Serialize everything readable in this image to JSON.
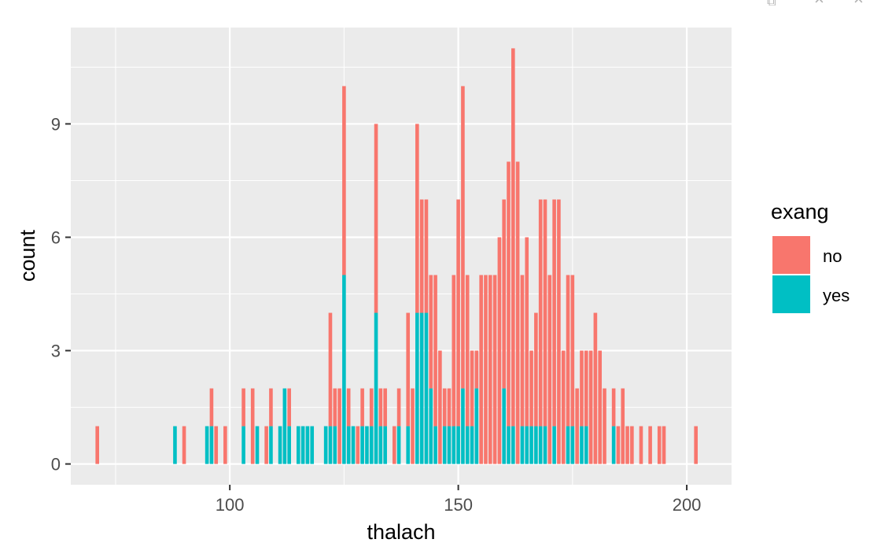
{
  "window_controls": {
    "popout_icon": "popout-icon",
    "close_glyph_1": "×",
    "close_glyph_2": "×"
  },
  "colors": {
    "panel_bg": "#EBEBEB",
    "grid_major": "#FFFFFF",
    "no": "#F8766D",
    "yes": "#00BFC4",
    "tick_text": "#4D4D4D"
  },
  "chart_data": {
    "type": "bar",
    "stacked": true,
    "title": "",
    "xlabel": "thalach",
    "ylabel": "count",
    "xlim": [
      65.2,
      209.8
    ],
    "ylim": [
      -0.55,
      11.55
    ],
    "x_ticks": [
      100,
      150,
      200
    ],
    "x_tick_labels": [
      "100",
      "150",
      "200"
    ],
    "y_ticks": [
      0,
      3,
      6,
      9
    ],
    "y_tick_labels": [
      "0",
      "3",
      "6",
      "9"
    ],
    "grid": true,
    "legend": {
      "title": "exang",
      "position": "right",
      "entries": [
        "no",
        "yes"
      ]
    },
    "x": [
      71,
      88,
      90,
      95,
      96,
      97,
      99,
      103,
      105,
      106,
      108,
      109,
      111,
      112,
      113,
      114,
      115,
      116,
      117,
      118,
      120,
      121,
      122,
      123,
      124,
      125,
      126,
      127,
      128,
      129,
      130,
      131,
      132,
      133,
      134,
      136,
      137,
      138,
      139,
      140,
      141,
      142,
      143,
      144,
      145,
      146,
      147,
      148,
      149,
      150,
      151,
      152,
      153,
      154,
      155,
      156,
      157,
      158,
      159,
      160,
      161,
      162,
      163,
      164,
      165,
      166,
      167,
      168,
      169,
      170,
      171,
      172,
      173,
      174,
      175,
      176,
      177,
      178,
      179,
      180,
      181,
      182,
      184,
      185,
      186,
      187,
      188,
      190,
      192,
      194,
      195,
      202
    ],
    "series": [
      {
        "name": "no",
        "values": [
          1,
          0,
          1,
          0,
          1,
          1,
          1,
          1,
          2,
          0,
          1,
          1,
          0,
          0,
          1,
          0,
          0,
          0,
          0,
          0,
          0,
          0,
          3,
          1,
          2,
          5,
          1,
          0,
          1,
          1,
          0,
          1,
          5,
          1,
          1,
          1,
          1,
          0,
          3,
          2,
          5,
          3,
          3,
          3,
          4,
          3,
          1,
          1,
          4,
          6,
          8,
          4,
          2,
          1,
          5,
          5,
          5,
          5,
          6,
          5,
          7,
          10,
          8,
          4,
          5,
          2,
          3,
          6,
          6,
          5,
          6,
          7,
          3,
          4,
          4,
          2,
          2,
          2,
          3,
          4,
          3,
          2,
          1,
          1,
          2,
          1,
          1,
          1,
          1,
          1,
          1,
          1
        ]
      },
      {
        "name": "yes",
        "values": [
          0,
          1,
          0,
          1,
          1,
          0,
          0,
          1,
          0,
          1,
          0,
          1,
          1,
          2,
          1,
          0,
          1,
          1,
          1,
          1,
          0,
          1,
          1,
          1,
          0,
          5,
          1,
          1,
          0,
          1,
          1,
          1,
          4,
          1,
          1,
          0,
          1,
          0,
          1,
          0,
          4,
          4,
          4,
          2,
          1,
          0,
          1,
          1,
          1,
          1,
          2,
          1,
          1,
          2,
          0,
          0,
          0,
          0,
          0,
          2,
          1,
          1,
          0,
          1,
          1,
          1,
          1,
          1,
          1,
          0,
          1,
          0,
          0,
          1,
          1,
          0,
          1,
          1,
          0,
          0,
          0,
          0,
          1,
          0,
          0,
          0,
          0,
          0,
          0,
          0,
          0,
          0
        ]
      }
    ]
  }
}
